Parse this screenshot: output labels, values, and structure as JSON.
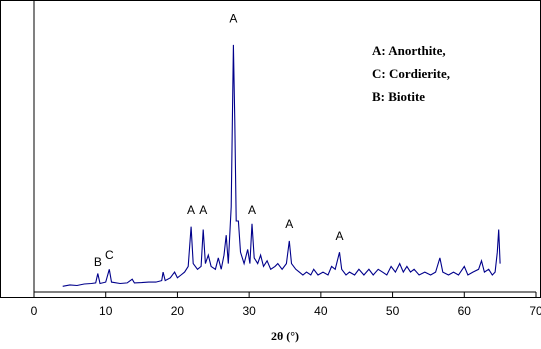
{
  "chart_data": {
    "type": "line",
    "x_label": "2θ (°)",
    "xlim": [
      0,
      70
    ],
    "xticks": [
      0,
      10,
      20,
      30,
      40,
      50,
      60,
      70
    ],
    "ylim": [
      0,
      100
    ],
    "notes": [
      "A: Anorthite,",
      "C: Cordierite,",
      "B: Biotite"
    ],
    "annotations": [
      {
        "text": "A",
        "x": 27.8,
        "y": 96
      },
      {
        "text": "A",
        "x": 21.9,
        "y": 28.5
      },
      {
        "text": "A",
        "x": 23.6,
        "y": 28.5
      },
      {
        "text": "A",
        "x": 30.4,
        "y": 28.5
      },
      {
        "text": "A",
        "x": 35.6,
        "y": 23.6
      },
      {
        "text": "A",
        "x": 42.6,
        "y": 19.4
      },
      {
        "text": "B",
        "x": 8.9,
        "y": 10.2
      },
      {
        "text": "C",
        "x": 10.5,
        "y": 12.7
      }
    ],
    "series": [
      {
        "color": "#00008b",
        "x": [
          4,
          5,
          6,
          7,
          8,
          8.6,
          8.9,
          9.2,
          10,
          10.5,
          10.8,
          12,
          13,
          13.7,
          14,
          15,
          16,
          17,
          17.8,
          18,
          18.3,
          19,
          19.6,
          20,
          20.5,
          21,
          21.5,
          21.9,
          22.2,
          22.8,
          23.3,
          23.6,
          23.9,
          24.3,
          24.7,
          25.3,
          25.7,
          26.1,
          26.5,
          26.8,
          27.1,
          27.5,
          27.8,
          28.0,
          28.2,
          28.5,
          28.8,
          29.3,
          29.8,
          30.1,
          30.4,
          30.7,
          31.2,
          31.6,
          32,
          32.5,
          33,
          33.6,
          34,
          34.6,
          35.2,
          35.6,
          35.9,
          36.5,
          37,
          37.5,
          38,
          38.6,
          39,
          39.6,
          40.3,
          41,
          41.5,
          42,
          42.6,
          42.9,
          43.5,
          44,
          44.7,
          45.3,
          46,
          46.7,
          47.3,
          48,
          48.6,
          49.2,
          49.8,
          50.4,
          51,
          51.5,
          52,
          52.5,
          53,
          53.7,
          54.5,
          55.3,
          56,
          56.6,
          57,
          57.8,
          58.5,
          59.2,
          60,
          60.5,
          61.2,
          62,
          62.4,
          62.8,
          63.4,
          63.9,
          64.3,
          64.6,
          64.8,
          65
        ],
        "values": [
          2,
          2.5,
          2.3,
          2.8,
          3,
          3.2,
          6.5,
          3,
          3.5,
          8,
          3.5,
          3,
          3.2,
          4.5,
          3.2,
          3.3,
          3.5,
          3.5,
          4,
          7,
          4,
          5,
          7,
          5,
          6,
          7,
          9,
          23,
          10,
          8,
          9,
          22,
          10,
          13,
          9,
          8,
          12,
          8,
          13,
          20,
          10,
          30,
          87,
          60,
          25,
          25,
          14,
          10,
          15,
          10,
          24,
          12,
          10,
          13,
          9,
          11,
          8,
          9,
          10,
          8,
          10,
          18,
          10,
          8,
          7,
          6,
          7,
          6,
          8,
          6,
          7,
          6,
          9,
          8,
          14,
          8,
          6,
          7,
          6,
          8,
          6,
          8,
          6,
          8,
          7,
          6,
          9,
          7,
          10,
          7,
          9,
          7,
          8,
          6,
          7,
          6,
          7,
          12,
          7,
          6,
          7,
          6,
          9,
          6,
          7,
          8,
          11,
          7,
          8,
          6,
          7,
          14,
          22,
          10
        ]
      }
    ]
  }
}
